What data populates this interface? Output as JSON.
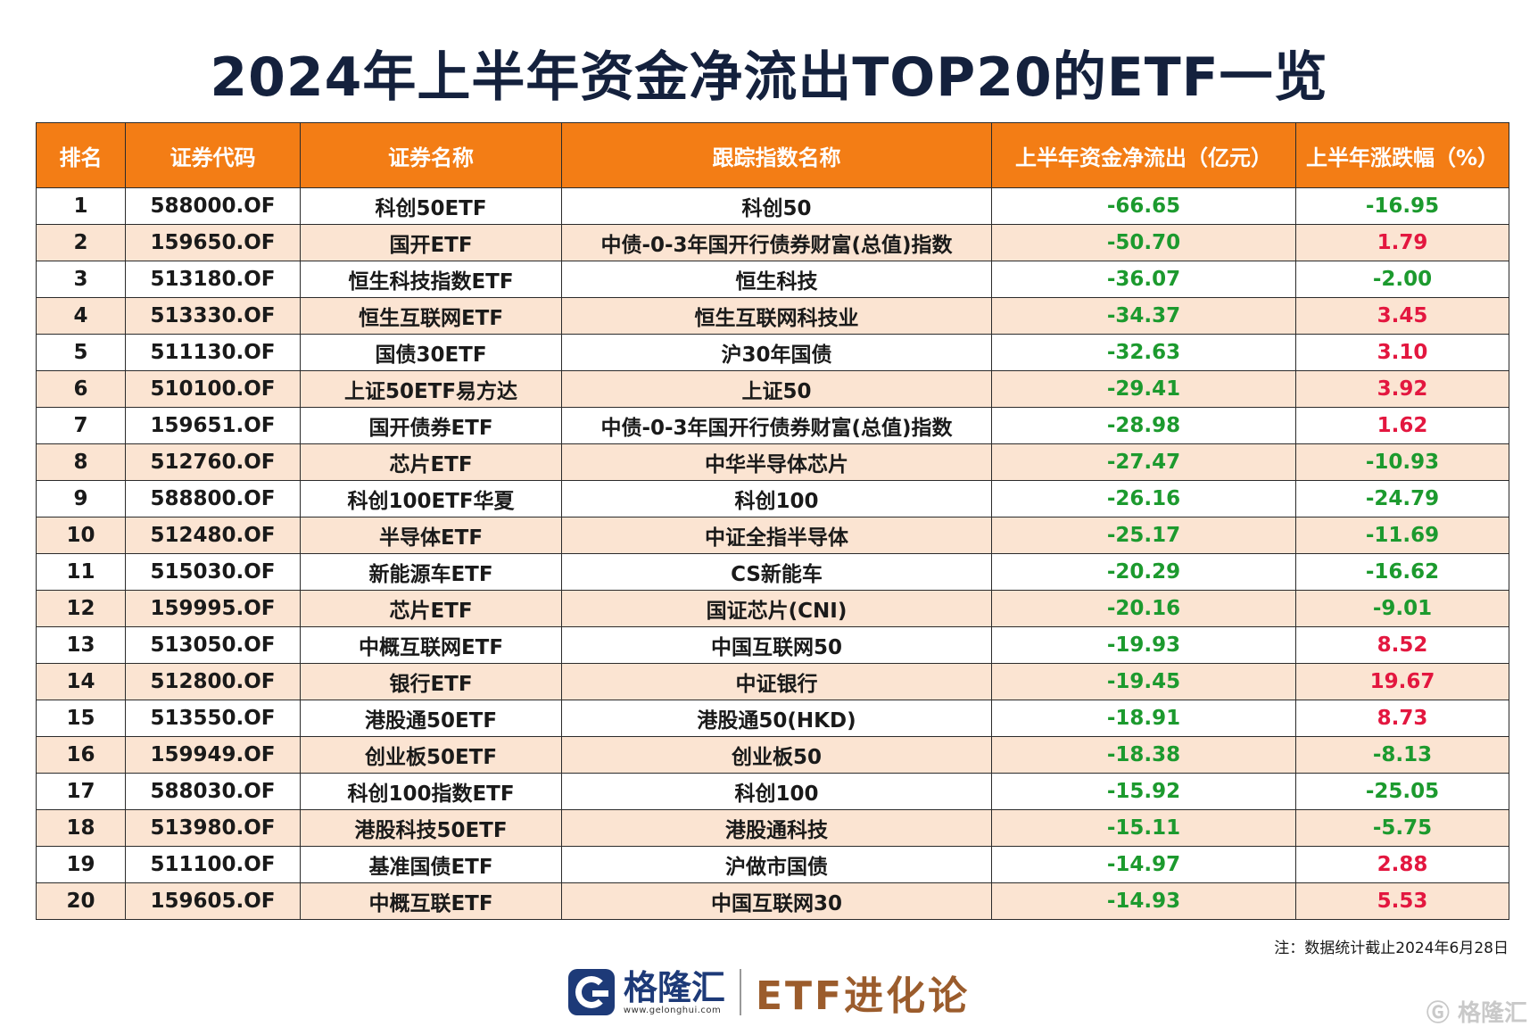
{
  "title": "2024年上半年资金净流出TOP20的ETF一览",
  "headers": [
    "排名",
    "证券代码",
    "证券名称",
    "跟踪指数名称",
    "上半年资金净流出（亿元）",
    "上半年涨跌幅（%）"
  ],
  "rows": [
    [
      "1",
      "588000.OF",
      "科创50ETF",
      "科创50",
      "-66.65",
      "-16.95"
    ],
    [
      "2",
      "159650.OF",
      "国开ETF",
      "中债-0-3年国开行债券财富(总值)指数",
      "-50.70",
      "1.79"
    ],
    [
      "3",
      "513180.OF",
      "恒生科技指数ETF",
      "恒生科技",
      "-36.07",
      "-2.00"
    ],
    [
      "4",
      "513330.OF",
      "恒生互联网ETF",
      "恒生互联网科技业",
      "-34.37",
      "3.45"
    ],
    [
      "5",
      "511130.OF",
      "国债30ETF",
      "沪30年国债",
      "-32.63",
      "3.10"
    ],
    [
      "6",
      "510100.OF",
      "上证50ETF易方达",
      "上证50",
      "-29.41",
      "3.92"
    ],
    [
      "7",
      "159651.OF",
      "国开债券ETF",
      "中债-0-3年国开行债券财富(总值)指数",
      "-28.98",
      "1.62"
    ],
    [
      "8",
      "512760.OF",
      "芯片ETF",
      "中华半导体芯片",
      "-27.47",
      "-10.93"
    ],
    [
      "9",
      "588800.OF",
      "科创100ETF华夏",
      "科创100",
      "-26.16",
      "-24.79"
    ],
    [
      "10",
      "512480.OF",
      "半导体ETF",
      "中证全指半导体",
      "-25.17",
      "-11.69"
    ],
    [
      "11",
      "515030.OF",
      "新能源车ETF",
      "CS新能车",
      "-20.29",
      "-16.62"
    ],
    [
      "12",
      "159995.OF",
      "芯片ETF",
      "国证芯片(CNI)",
      "-20.16",
      "-9.01"
    ],
    [
      "13",
      "513050.OF",
      "中概互联网ETF",
      "中国互联网50",
      "-19.93",
      "8.52"
    ],
    [
      "14",
      "512800.OF",
      "银行ETF",
      "中证银行",
      "-19.45",
      "19.67"
    ],
    [
      "15",
      "513550.OF",
      "港股通50ETF",
      "港股通50(HKD)",
      "-18.91",
      "8.73"
    ],
    [
      "16",
      "159949.OF",
      "创业板50ETF",
      "创业板50",
      "-18.38",
      "-8.13"
    ],
    [
      "17",
      "588030.OF",
      "科创100指数ETF",
      "科创100",
      "-15.92",
      "-25.05"
    ],
    [
      "18",
      "513980.OF",
      "港股科技50ETF",
      "港股通科技",
      "-15.11",
      "-5.75"
    ],
    [
      "19",
      "511100.OF",
      "基准国债ETF",
      "沪做市国债",
      "-14.97",
      "2.88"
    ],
    [
      "20",
      "159605.OF",
      "中概互联ETF",
      "中国互联网30",
      "-14.93",
      "5.53"
    ]
  ],
  "note": "注：数据统计截止2024年6月28日",
  "footer": {
    "brand": "格隆汇",
    "url": "www.gelonghui.com",
    "slogan": "ETF进化论",
    "watermark": "格隆汇"
  },
  "colors": {
    "header_bg": "#f37d15",
    "stripe_bg": "#fbe4d2",
    "negative": "#1c9a2e",
    "positive": "#e3173f",
    "title": "#14213d"
  }
}
